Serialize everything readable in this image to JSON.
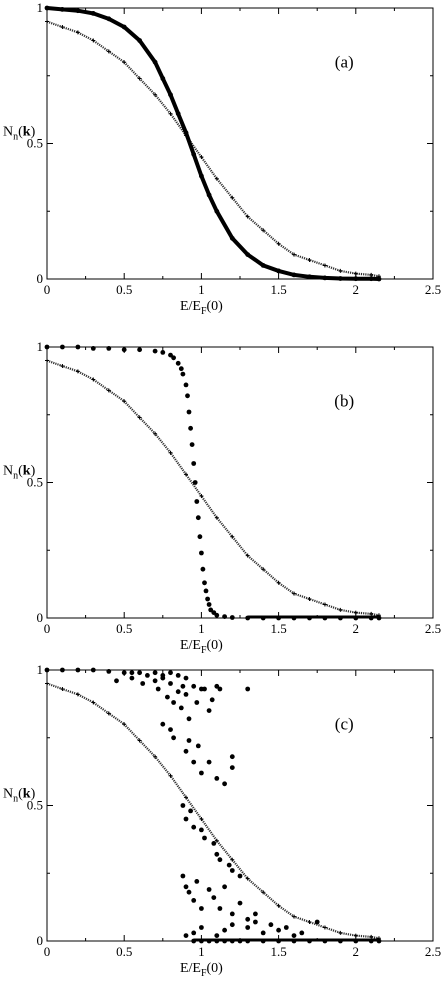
{
  "chart_data": [
    {
      "type": "scatter",
      "panel_label": "(a)",
      "xlabel_main": "E/E",
      "xlabel_sub": "F",
      "xlabel_tail": "(0)",
      "ylabel_main": "N",
      "ylabel_sub": "n",
      "ylabel_bold": "k",
      "xlim": [
        0,
        2.5
      ],
      "ylim": [
        0,
        1
      ],
      "xticks": [
        0,
        0.5,
        1,
        1.5,
        2,
        2.5
      ],
      "xtick_labels": [
        "0",
        "0.5",
        "1",
        "1.5",
        "2",
        "2.5"
      ],
      "yticks": [
        0,
        0.5,
        1
      ],
      "ytick_labels": [
        "0",
        "0.5",
        "1"
      ],
      "series": [
        {
          "marker": "plus",
          "x": [
            0,
            0.1,
            0.2,
            0.3,
            0.4,
            0.5,
            0.6,
            0.7,
            0.8,
            0.9,
            1.0,
            1.1,
            1.2,
            1.3,
            1.4,
            1.5,
            1.6,
            1.7,
            1.8,
            1.9,
            2.0,
            2.1,
            2.15
          ],
          "y": [
            0.95,
            0.93,
            0.91,
            0.88,
            0.84,
            0.8,
            0.74,
            0.68,
            0.61,
            0.53,
            0.45,
            0.37,
            0.3,
            0.23,
            0.18,
            0.13,
            0.09,
            0.07,
            0.05,
            0.03,
            0.02,
            0.015,
            0.01
          ]
        },
        {
          "marker": "dot",
          "x": [
            0,
            0.1,
            0.2,
            0.3,
            0.4,
            0.5,
            0.6,
            0.7,
            0.75,
            0.8,
            0.85,
            0.9,
            0.95,
            1.0,
            1.05,
            1.1,
            1.2,
            1.3,
            1.4,
            1.5,
            1.6,
            1.7,
            1.8,
            1.9,
            2.0,
            2.1,
            2.15
          ],
          "y": [
            1.0,
            0.995,
            0.99,
            0.98,
            0.96,
            0.93,
            0.88,
            0.8,
            0.74,
            0.68,
            0.61,
            0.54,
            0.46,
            0.38,
            0.31,
            0.25,
            0.15,
            0.09,
            0.05,
            0.03,
            0.015,
            0.008,
            0.004,
            0.002,
            0.001,
            0.001,
            0.0
          ]
        }
      ]
    },
    {
      "type": "scatter",
      "panel_label": "(b)",
      "xlabel_main": "E/E",
      "xlabel_sub": "F",
      "xlabel_tail": "(0)",
      "ylabel_main": "N",
      "ylabel_sub": "n",
      "ylabel_bold": "k",
      "xlim": [
        0,
        2.5
      ],
      "ylim": [
        0,
        1
      ],
      "xticks": [
        0,
        0.5,
        1,
        1.5,
        2,
        2.5
      ],
      "xtick_labels": [
        "0",
        "0.5",
        "1",
        "1.5",
        "2",
        "2.5"
      ],
      "yticks": [
        0,
        0.5,
        1
      ],
      "ytick_labels": [
        "0",
        "0.5",
        "1"
      ],
      "series": [
        {
          "marker": "plus",
          "x": [
            0,
            0.1,
            0.2,
            0.3,
            0.4,
            0.5,
            0.6,
            0.7,
            0.8,
            0.9,
            1.0,
            1.1,
            1.2,
            1.3,
            1.4,
            1.5,
            1.6,
            1.7,
            1.8,
            1.9,
            2.0,
            2.1,
            2.15
          ],
          "y": [
            0.95,
            0.93,
            0.91,
            0.88,
            0.84,
            0.8,
            0.74,
            0.68,
            0.61,
            0.53,
            0.45,
            0.37,
            0.3,
            0.23,
            0.18,
            0.13,
            0.09,
            0.07,
            0.05,
            0.03,
            0.02,
            0.015,
            0.01
          ]
        },
        {
          "marker": "dot",
          "x": [
            0,
            0.1,
            0.2,
            0.3,
            0.4,
            0.5,
            0.6,
            0.7,
            0.75,
            0.8,
            0.82,
            0.85,
            0.87,
            0.88,
            0.9,
            0.91,
            0.92,
            0.93,
            0.94,
            0.95,
            0.96,
            0.97,
            0.98,
            0.99,
            1.0,
            1.01,
            1.02,
            1.03,
            1.04,
            1.05,
            1.06,
            1.08,
            1.1,
            1.15,
            1.2,
            1.3,
            1.4,
            1.5,
            1.6,
            1.7,
            1.8,
            1.9,
            2.0,
            2.1,
            2.15
          ],
          "y": [
            1.0,
            1.0,
            1.0,
            0.995,
            0.995,
            0.99,
            0.99,
            0.985,
            0.98,
            0.97,
            0.96,
            0.94,
            0.92,
            0.9,
            0.86,
            0.82,
            0.76,
            0.7,
            0.64,
            0.57,
            0.5,
            0.43,
            0.37,
            0.3,
            0.24,
            0.18,
            0.13,
            0.1,
            0.07,
            0.05,
            0.03,
            0.02,
            0.01,
            0.005,
            0.002,
            0.0,
            0.0,
            0.0,
            0.0,
            0.0,
            0.0,
            0.0,
            0.0,
            0.0,
            0.0
          ]
        }
      ]
    },
    {
      "type": "scatter",
      "panel_label": "(c)",
      "xlabel_main": "E/E",
      "xlabel_sub": "F",
      "xlabel_tail": "(0)",
      "ylabel_main": "N",
      "ylabel_sub": "n",
      "ylabel_bold": "k",
      "xlim": [
        0,
        2.5
      ],
      "ylim": [
        0,
        1
      ],
      "xticks": [
        0,
        0.5,
        1,
        1.5,
        2,
        2.5
      ],
      "xtick_labels": [
        "0",
        "0.5",
        "1",
        "1.5",
        "2",
        "2.5"
      ],
      "yticks": [
        0,
        0.5,
        1
      ],
      "ytick_labels": [
        "0",
        "0.5",
        "1"
      ],
      "series": [
        {
          "marker": "plus",
          "x": [
            0,
            0.1,
            0.2,
            0.3,
            0.4,
            0.5,
            0.6,
            0.7,
            0.8,
            0.9,
            1.0,
            1.1,
            1.2,
            1.3,
            1.4,
            1.5,
            1.6,
            1.7,
            1.8,
            1.9,
            2.0,
            2.1,
            2.15
          ],
          "y": [
            0.95,
            0.93,
            0.91,
            0.88,
            0.84,
            0.8,
            0.74,
            0.68,
            0.61,
            0.53,
            0.45,
            0.37,
            0.3,
            0.23,
            0.18,
            0.13,
            0.09,
            0.07,
            0.05,
            0.03,
            0.02,
            0.015,
            0.01
          ]
        },
        {
          "marker": "dot",
          "x": [
            0,
            0.1,
            0.2,
            0.3,
            0.4,
            0.5,
            0.55,
            0.6,
            0.65,
            0.7,
            0.75,
            0.8,
            0.85,
            0.9,
            0.45,
            0.55,
            0.62,
            0.7,
            0.72,
            0.75,
            0.78,
            0.8,
            0.82,
            0.85,
            0.87,
            0.88,
            0.9,
            0.92,
            0.95,
            0.97,
            1.0,
            1.02,
            1.05,
            1.07,
            1.1,
            1.12,
            1.3,
            1.2,
            0.75,
            0.8,
            0.82,
            0.9,
            0.92,
            0.95,
            0.98,
            1.0,
            1.05,
            1.1,
            1.15,
            1.2,
            0.88,
            0.9,
            0.93,
            0.95,
            1.0,
            1.02,
            1.08,
            1.1,
            1.12,
            1.18,
            1.2,
            1.25,
            0.88,
            0.9,
            0.92,
            0.95,
            0.97,
            1.0,
            1.05,
            1.08,
            1.12,
            1.15,
            1.2,
            1.25,
            1.3,
            1.35,
            0.9,
            0.95,
            1.0,
            1.1,
            1.15,
            1.2,
            1.3,
            1.35,
            1.4,
            1.45,
            1.5,
            1.55,
            1.6,
            1.65,
            1.75,
            0.95,
            1.0,
            1.05,
            1.1,
            1.15,
            1.2,
            1.25,
            1.3,
            1.4,
            1.5,
            1.6,
            1.7,
            1.8,
            1.9,
            2.0,
            2.1,
            2.15
          ],
          "y": [
            1.0,
            1.0,
            1.0,
            1.0,
            0.995,
            0.99,
            0.99,
            0.99,
            0.98,
            0.99,
            0.98,
            0.99,
            0.98,
            0.97,
            0.96,
            0.97,
            0.95,
            0.96,
            0.93,
            0.97,
            0.9,
            0.95,
            0.88,
            0.92,
            0.86,
            0.94,
            0.91,
            0.82,
            0.94,
            0.88,
            0.93,
            0.93,
            0.85,
            0.89,
            0.94,
            0.93,
            0.93,
            0.64,
            0.8,
            0.78,
            0.75,
            0.7,
            0.74,
            0.66,
            0.72,
            0.62,
            0.66,
            0.6,
            0.58,
            0.68,
            0.5,
            0.45,
            0.48,
            0.42,
            0.41,
            0.38,
            0.36,
            0.32,
            0.3,
            0.28,
            0.26,
            0.24,
            0.24,
            0.2,
            0.18,
            0.15,
            0.22,
            0.12,
            0.19,
            0.16,
            0.12,
            0.2,
            0.1,
            0.14,
            0.08,
            0.1,
            0.02,
            0.03,
            0.05,
            0.02,
            0.04,
            0.06,
            0.05,
            0.07,
            0.03,
            0.06,
            0.04,
            0.05,
            0.02,
            0.03,
            0.07,
            0.0,
            0.0,
            0.0,
            0.0,
            0.0,
            0.0,
            0.0,
            0.0,
            0.0,
            0.0,
            0.0,
            0.0,
            0.0,
            0.0,
            0.0,
            0.0,
            0.0
          ]
        }
      ]
    }
  ]
}
